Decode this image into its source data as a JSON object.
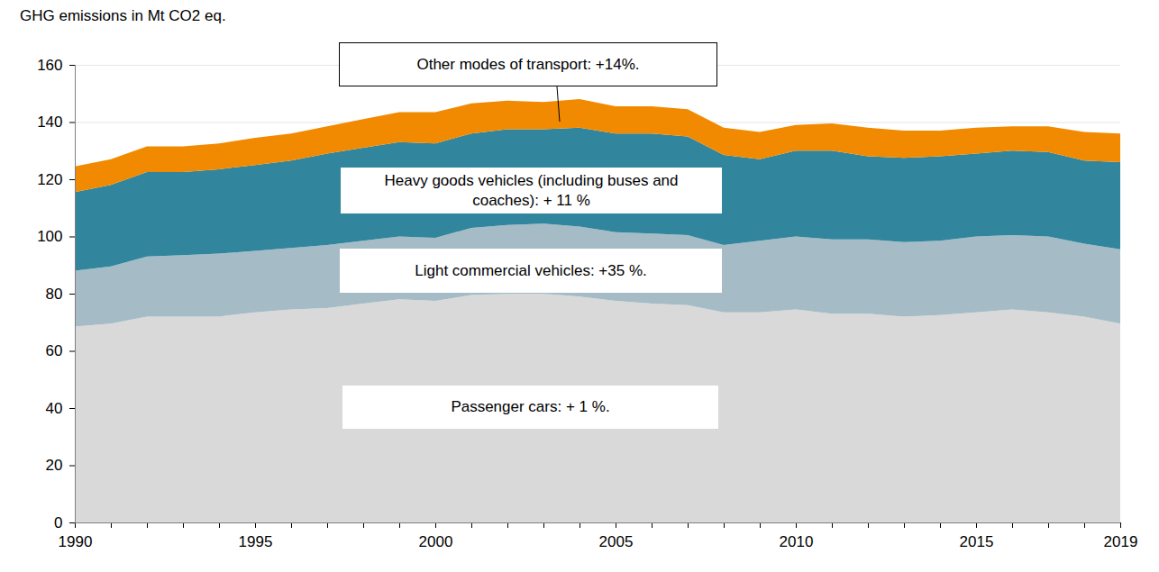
{
  "chart_data": {
    "type": "area",
    "stacked": true,
    "grid": true,
    "y_label": "GHG emissions in Mt CO2 eq.",
    "x": [
      1990,
      1991,
      1992,
      1993,
      1994,
      1995,
      1996,
      1997,
      1998,
      1999,
      2000,
      2001,
      2002,
      2003,
      2004,
      2005,
      2006,
      2007,
      2008,
      2009,
      2010,
      2011,
      2012,
      2013,
      2014,
      2015,
      2016,
      2017,
      2018,
      2019
    ],
    "xlim": [
      1990,
      2019
    ],
    "xticks": [
      1990,
      1995,
      2000,
      2005,
      2010,
      2015,
      2019
    ],
    "ylim": [
      0,
      160
    ],
    "yticks": [
      0,
      20,
      40,
      60,
      80,
      100,
      120,
      140,
      160
    ],
    "series": [
      {
        "name": "Passenger cars: + 1 %.",
        "color": "#d9d9d9",
        "values": [
          68.5,
          69.5,
          72,
          72,
          72,
          73.5,
          74.5,
          75,
          76.5,
          78,
          77.5,
          79.5,
          80,
          80,
          79,
          77.5,
          76.5,
          76,
          73.5,
          73.5,
          74.5,
          73,
          73,
          72,
          72.5,
          73.5,
          74.5,
          73.5,
          72,
          69.5
        ]
      },
      {
        "name": "Light commercial vehicles: +35 %.",
        "color": "#a5bcc6",
        "values": [
          19.5,
          20,
          21,
          21.5,
          22,
          21.5,
          21.5,
          22,
          22,
          22,
          22,
          23.5,
          24,
          24.5,
          24.5,
          24,
          24.5,
          24.5,
          23.5,
          25,
          25.5,
          26,
          26,
          26,
          26,
          26.5,
          26,
          26.5,
          25.5,
          26
        ]
      },
      {
        "name": "Heavy goods vehicles (including buses and coaches): + 11 %",
        "color": "#31859c",
        "values": [
          27.5,
          28.5,
          29.5,
          29,
          29.5,
          30,
          30.5,
          32,
          32.5,
          33,
          33,
          33,
          33.5,
          33,
          34.5,
          34.5,
          35,
          34.5,
          31.5,
          28.5,
          30,
          31,
          29,
          29.5,
          29.5,
          29,
          29.5,
          29.5,
          29,
          30.5
        ]
      },
      {
        "name": "Other modes of transport: +14%.",
        "color": "#f18a00",
        "values": [
          9,
          9,
          9,
          9,
          9,
          9.5,
          9.5,
          9.5,
          10,
          10.5,
          11,
          10.5,
          10,
          9.5,
          10,
          9.5,
          9.5,
          9.5,
          9.5,
          9.5,
          9,
          9.5,
          10,
          9.5,
          9,
          9,
          8.5,
          9,
          10,
          10
        ]
      }
    ]
  }
}
